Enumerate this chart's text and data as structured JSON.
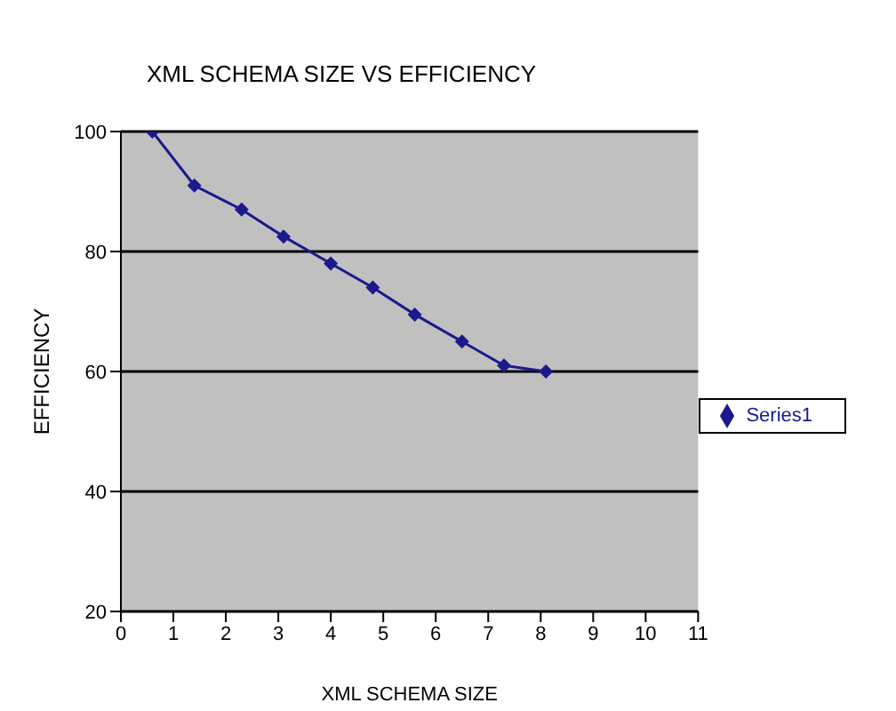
{
  "chart_data": {
    "type": "line",
    "title": "XML SCHEMA SIZE VS EFFICIENCY",
    "xlabel": "XML SCHEMA SIZE",
    "ylabel": "EFFICIENCY",
    "x": [
      0.6,
      1.4,
      2.3,
      3.1,
      4.0,
      4.8,
      5.6,
      6.5,
      7.3,
      8.1
    ],
    "series": [
      {
        "name": "Series1",
        "color": "#1a1a8c",
        "values": [
          100,
          91,
          87,
          82.5,
          78,
          74,
          69.5,
          65,
          61,
          60
        ]
      }
    ],
    "xlim": [
      0,
      11
    ],
    "xticks": [
      0,
      1,
      2,
      3,
      4,
      5,
      6,
      7,
      8,
      9,
      10,
      11
    ],
    "ylim": [
      20,
      100
    ],
    "yticks": [
      20,
      40,
      60,
      80,
      100
    ],
    "grid": "y",
    "legend": "right",
    "marker": "diamond",
    "line_style": "solid"
  }
}
